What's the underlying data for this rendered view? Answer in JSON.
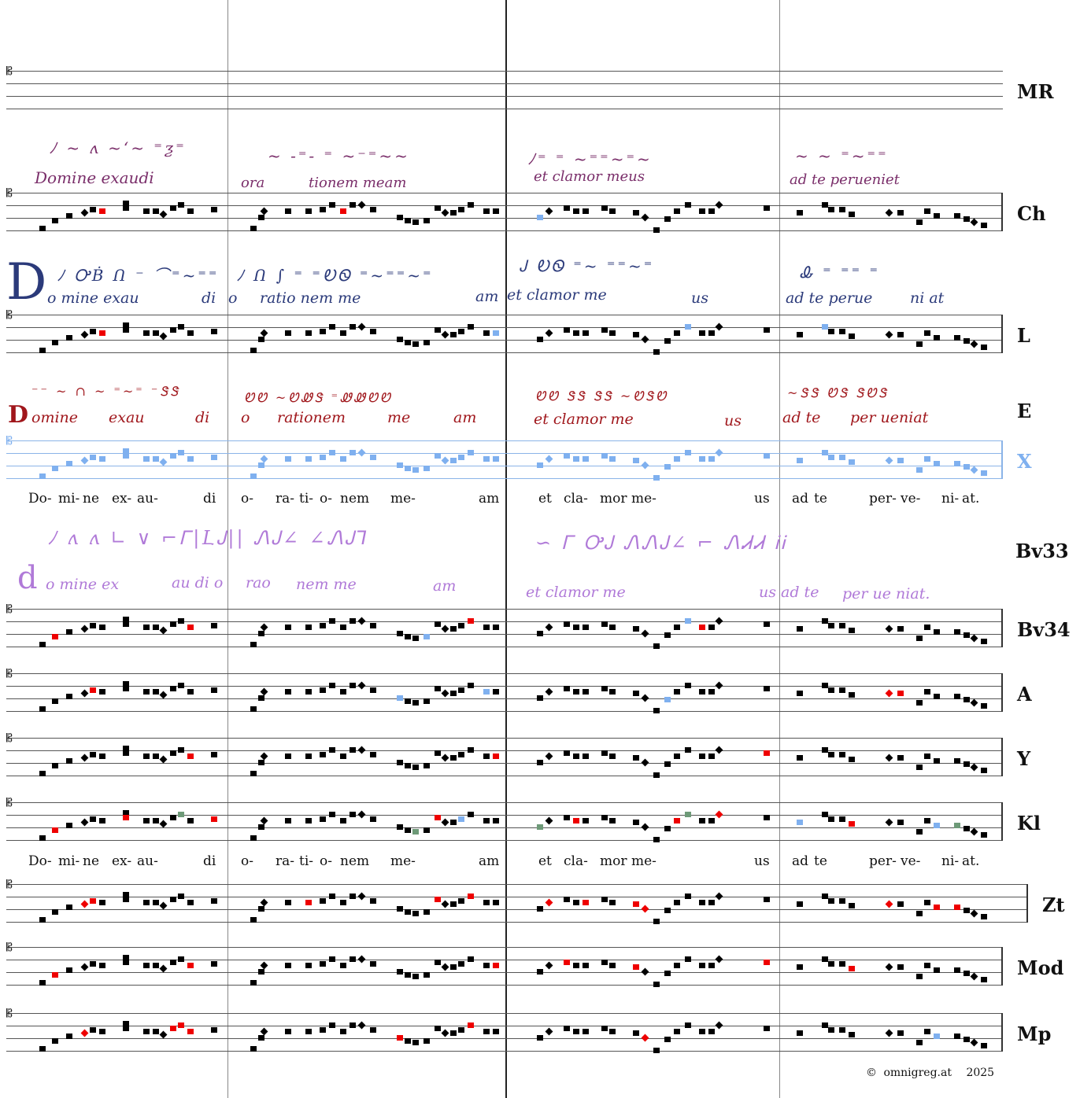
{
  "labels": {
    "mr": "MR",
    "ch": "Ch",
    "l": "L",
    "e": "E",
    "x": "X",
    "bv33": "Bv33",
    "bv34": "Bv34",
    "a": "A",
    "y": "Y",
    "kl": "Kl",
    "zt": "Zt",
    "mod": "Mod",
    "mp": "Mp"
  },
  "lyrics": [
    "Do-",
    "mi-",
    "ne",
    "ex-",
    "au-",
    "di",
    "o-",
    "ra-",
    "ti-",
    "o-",
    "nem",
    "me-",
    "am",
    "et",
    "cla-",
    "mor",
    "me-",
    "us",
    "ad",
    "te",
    "per-",
    "ve-",
    "ni-",
    "at."
  ],
  "manuscript_text": {
    "ch": [
      "Domine exaudi",
      "ora",
      "tionem meam",
      "et clamor meus",
      "ad te perueniet"
    ],
    "l": [
      "o mine exau",
      "di",
      "o",
      "ratio nem me",
      "am",
      "et clamor me",
      "us",
      "ad te perue",
      "ni at"
    ],
    "l_initial": "D",
    "e": [
      "omine",
      "exau",
      "di",
      "o",
      "rationem",
      "me",
      "am",
      "et clamor me",
      "us",
      "ad te",
      "per ueniat"
    ],
    "e_initial": "D",
    "bv33": [
      "o mine ex",
      "au di o",
      "rao",
      "nem me",
      "am",
      "et clamor me",
      "us ad te",
      "per ue niat."
    ],
    "bv33_initial": "d"
  },
  "copyright": {
    "symbol": "©",
    "site": "omnigreg.at",
    "year": "2025"
  },
  "colors": {
    "ch_text": "#7a2e6a",
    "l_text": "#2b3a7a",
    "e_text": "#a0171c",
    "bv33_text": "#b07ad8",
    "x_staff": "#8bb4e8",
    "variant_red": "#e00000",
    "variant_blue": "#7fb0ef",
    "variant_green": "#6e9a78"
  }
}
